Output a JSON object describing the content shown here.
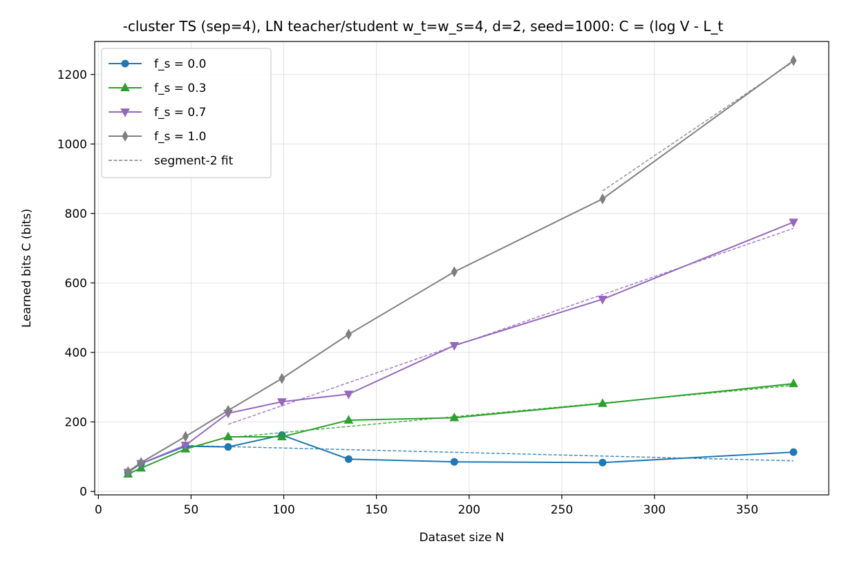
{
  "chart_data": {
    "type": "line",
    "title": "-cluster TS (sep=4), LN teacher/student w_t=w_s=4, d=2, seed=1000: C = (log V - L_t",
    "xlabel": "Dataset size N",
    "ylabel": "Learned bits C (bits)",
    "xlim": [
      -2,
      394
    ],
    "ylim": [
      -10,
      1295
    ],
    "xticks": [
      0,
      50,
      100,
      150,
      200,
      250,
      300,
      350
    ],
    "yticks": [
      0,
      200,
      400,
      600,
      800,
      1000,
      1200
    ],
    "grid": true,
    "legend_position": "top-left",
    "series": [
      {
        "name": "f_s = 0.0",
        "color": "#1f77b4",
        "marker": "circle",
        "x": [
          16,
          23,
          47,
          70,
          99,
          135,
          192,
          272,
          375
        ],
        "y": [
          55,
          80,
          130,
          128,
          162,
          93,
          85,
          83,
          113
        ]
      },
      {
        "name": "f_s = 0.3",
        "color": "#2ca02c",
        "marker": "triangle-up",
        "x": [
          16,
          23,
          47,
          70,
          99,
          135,
          192,
          272,
          375
        ],
        "y": [
          50,
          67,
          122,
          157,
          157,
          205,
          212,
          253,
          310
        ]
      },
      {
        "name": "f_s = 0.7",
        "color": "#9467bd",
        "marker": "triangle-down",
        "x": [
          16,
          23,
          47,
          70,
          99,
          135,
          192,
          272,
          375
        ],
        "y": [
          55,
          80,
          133,
          225,
          258,
          280,
          420,
          553,
          775
        ]
      },
      {
        "name": "f_s = 1.0",
        "color": "#7f7f7f",
        "marker": "diamond",
        "x": [
          16,
          23,
          47,
          70,
          99,
          135,
          192,
          272,
          375
        ],
        "y": [
          57,
          83,
          158,
          233,
          325,
          452,
          632,
          842,
          1240
        ]
      }
    ],
    "fits": [
      {
        "color": "#1f77b4",
        "x": [
          47,
          375
        ],
        "y": [
          132,
          88
        ]
      },
      {
        "color": "#2ca02c",
        "x": [
          70,
          375
        ],
        "y": [
          155,
          305
        ]
      },
      {
        "color": "#9467bd",
        "x": [
          70,
          375
        ],
        "y": [
          193,
          757
        ]
      },
      {
        "color": "#7f7f7f",
        "x": [
          272,
          375
        ],
        "y": [
          865,
          1237
        ]
      }
    ],
    "fit_legend_label": "segment-2 fit"
  }
}
